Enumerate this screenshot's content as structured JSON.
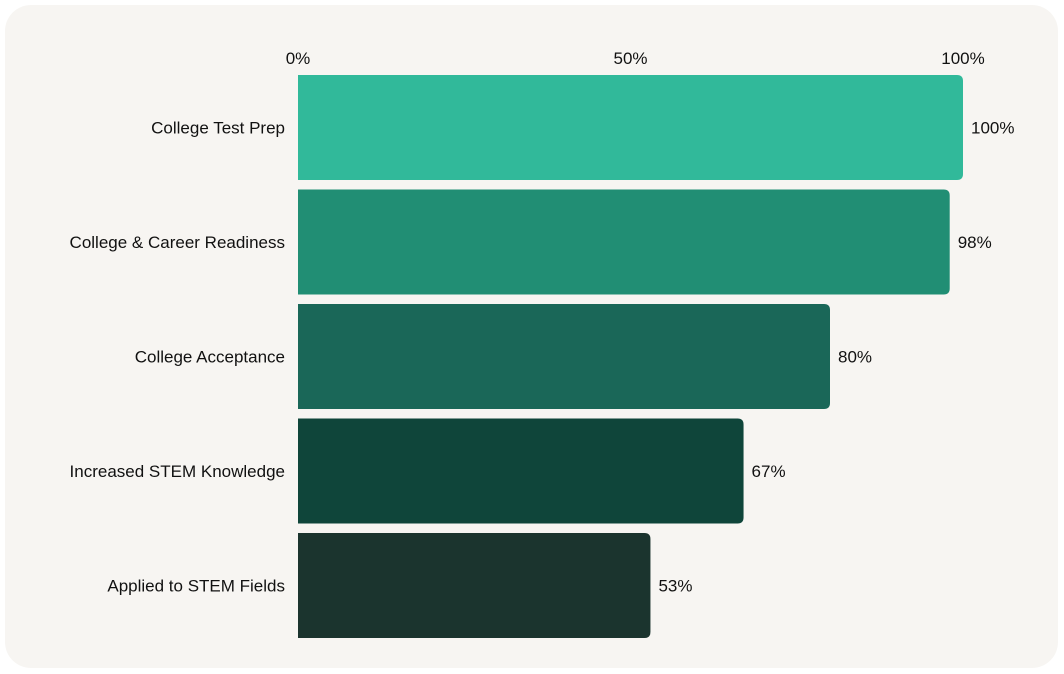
{
  "chart_data": {
    "type": "bar",
    "orientation": "horizontal",
    "categories": [
      "College Test Prep",
      "College & Career Readiness",
      "College Acceptance",
      "Increased STEM Knowledge",
      "Applied to STEM Fields"
    ],
    "values": [
      100,
      98,
      80,
      67,
      53
    ],
    "value_labels": [
      "100%",
      "98%",
      "80%",
      "67%",
      "53%"
    ],
    "bar_colors": [
      "#31b99a",
      "#218e74",
      "#1a6758",
      "#0f453a",
      "#1b342e"
    ],
    "xlim": [
      0,
      100
    ],
    "x_ticks": [
      0,
      50,
      100
    ],
    "x_tick_labels": [
      "0%",
      "50%",
      "100%"
    ],
    "x_axis_position": "top",
    "grid": false,
    "legend": "none",
    "background_color": "#f7f5f2"
  }
}
